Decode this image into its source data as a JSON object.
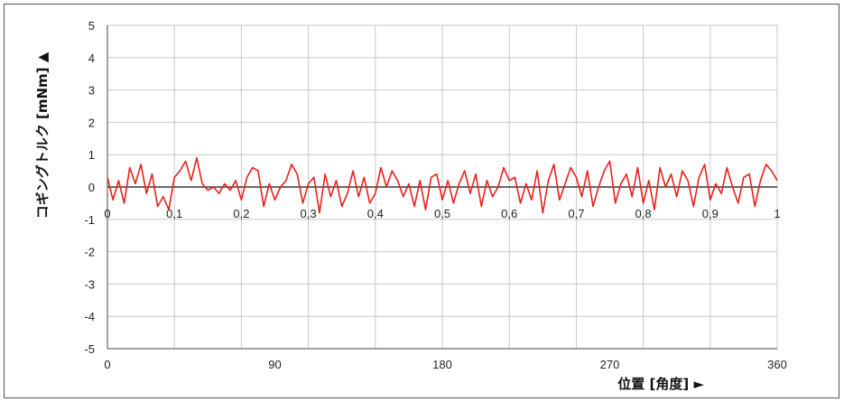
{
  "chart_data": {
    "type": "line",
    "ylabel": "コギングトルク [mNm] ▲",
    "xlabel": "位置 [角度] ►",
    "ylim": [
      -5,
      5
    ],
    "y_ticks": [
      "5",
      "4",
      "3",
      "2",
      "1",
      "0",
      "-1",
      "-2",
      "-3",
      "-4",
      "-5"
    ],
    "x_ticks_bottom": [
      "0",
      "90",
      "180",
      "270",
      "360"
    ],
    "x_ticks_inner": [
      "0",
      "0,1",
      "0,2",
      "0,3",
      "0,4",
      "0,5",
      "0,6",
      "0,7",
      "0,8",
      "0,9",
      "1"
    ],
    "xlim": [
      0,
      360
    ],
    "grid": true,
    "line_color": "#e8211c",
    "series": [
      {
        "x": [
          0,
          3,
          6,
          9,
          12,
          15,
          18,
          21,
          24,
          27,
          30,
          33,
          36,
          39,
          42,
          45,
          48,
          51,
          54,
          57,
          60,
          63,
          66,
          69,
          72,
          75,
          78,
          81,
          84,
          87,
          90,
          93,
          96,
          99,
          102,
          105,
          108,
          111,
          114,
          117,
          120,
          123,
          126,
          129,
          132,
          135,
          138,
          141,
          144,
          147,
          150,
          153,
          156,
          159,
          162,
          165,
          168,
          171,
          174,
          177,
          180,
          183,
          186,
          189,
          192,
          195,
          198,
          201,
          204,
          207,
          210,
          213,
          216,
          219,
          222,
          225,
          228,
          231,
          234,
          237,
          240,
          243,
          246,
          249,
          252,
          255,
          258,
          261,
          264,
          267,
          270,
          273,
          276,
          279,
          282,
          285,
          288,
          291,
          294,
          297,
          300,
          303,
          306,
          309,
          312,
          315,
          318,
          321,
          324,
          327,
          330,
          333,
          336,
          339,
          342,
          345,
          348,
          351,
          354,
          357,
          360
        ],
        "y": [
          0.3,
          -0.4,
          0.2,
          -0.5,
          0.6,
          0.1,
          0.7,
          -0.2,
          0.4,
          -0.6,
          -0.3,
          -0.7,
          0.3,
          0.5,
          0.8,
          0.2,
          0.9,
          0.1,
          -0.1,
          0.0,
          -0.2,
          0.1,
          -0.1,
          0.2,
          -0.4,
          0.3,
          0.6,
          0.5,
          -0.6,
          0.1,
          -0.4,
          0.0,
          0.2,
          0.7,
          0.4,
          -0.5,
          0.1,
          0.3,
          -0.8,
          0.4,
          -0.3,
          0.2,
          -0.6,
          -0.2,
          0.5,
          -0.3,
          0.3,
          -0.5,
          -0.2,
          0.6,
          0.0,
          0.5,
          0.2,
          -0.3,
          0.1,
          -0.6,
          0.2,
          -0.7,
          0.3,
          0.4,
          -0.4,
          0.2,
          -0.5,
          0.1,
          0.5,
          -0.2,
          0.4,
          -0.6,
          0.2,
          -0.3,
          0.0,
          0.6,
          0.2,
          0.3,
          -0.5,
          0.1,
          -0.4,
          0.5,
          -0.8,
          0.2,
          0.7,
          -0.4,
          0.1,
          0.6,
          0.3,
          -0.3,
          0.5,
          -0.6,
          0.0,
          0.5,
          0.8,
          -0.5,
          0.1,
          0.4,
          -0.3,
          0.6,
          -0.5,
          0.2,
          -0.7,
          0.6,
          0.0,
          0.4,
          -0.3,
          0.5,
          0.2,
          -0.6,
          0.3,
          0.7,
          -0.4,
          0.1,
          -0.2,
          0.6,
          0.0,
          -0.5,
          0.3,
          0.4,
          -0.6,
          0.2,
          0.7,
          0.5,
          0.2
        ]
      }
    ]
  }
}
